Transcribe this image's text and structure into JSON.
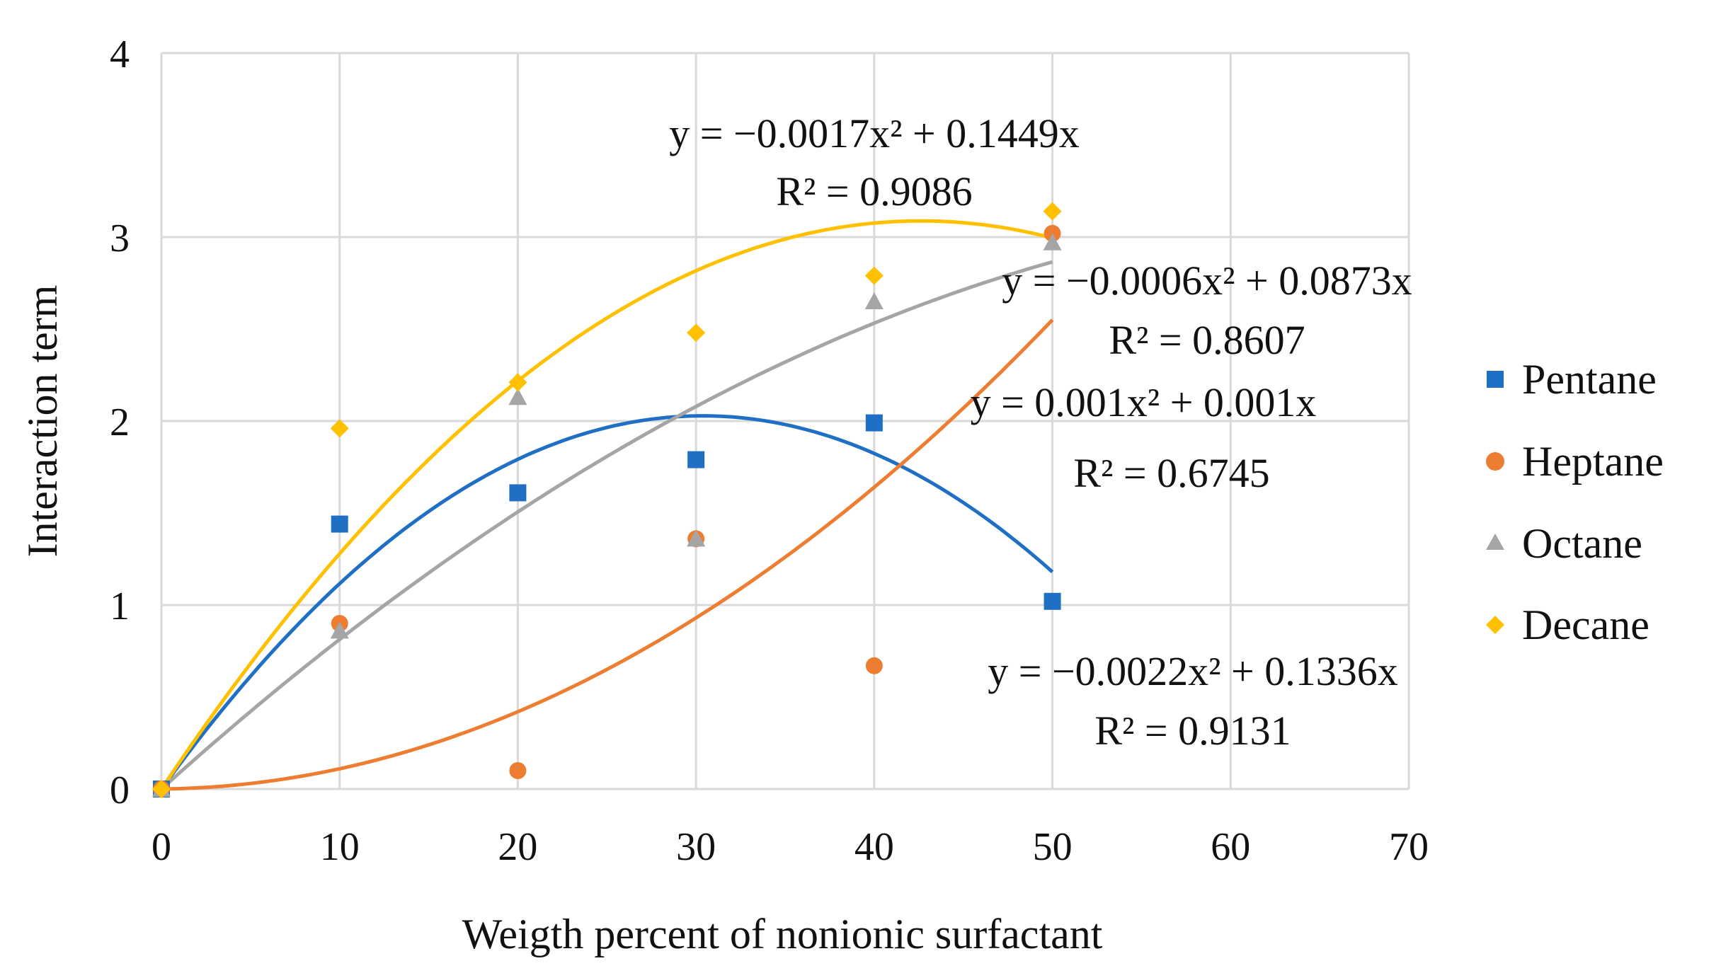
{
  "chart_data": {
    "type": "scatter",
    "title": "",
    "xlabel": "Weigth percent of nonionic surfactant",
    "ylabel": "Interaction term",
    "xlim": [
      0,
      70
    ],
    "ylim": [
      0,
      4
    ],
    "xticks": [
      0,
      10,
      20,
      30,
      40,
      50,
      60,
      70
    ],
    "yticks": [
      0,
      1,
      2,
      3,
      4
    ],
    "grid": true,
    "legend_position": "right",
    "series": [
      {
        "name": "Pentane",
        "marker": "square",
        "color": "#1f6fc5",
        "x": [
          0,
          10,
          20,
          30,
          40,
          50
        ],
        "y": [
          0.0,
          1.44,
          1.61,
          1.79,
          1.99,
          1.02
        ],
        "trend": {
          "a": -0.0022,
          "b": 0.1336,
          "equation": "y = −0.0022x² + 0.1336x",
          "r2": "R² = 0.9131"
        }
      },
      {
        "name": "Heptane",
        "marker": "circle",
        "color": "#ed7d31",
        "x": [
          0,
          10,
          20,
          30,
          40,
          50
        ],
        "y": [
          0.0,
          0.9,
          0.1,
          1.36,
          0.67,
          3.02
        ],
        "trend": {
          "a": 0.001,
          "b": 0.001,
          "equation": "y = 0.001x² + 0.001x",
          "r2": "R² = 0.6745"
        }
      },
      {
        "name": "Octane",
        "marker": "triangle",
        "color": "#a5a5a5",
        "x": [
          0,
          10,
          20,
          30,
          40,
          50
        ],
        "y": [
          0.0,
          0.86,
          2.13,
          1.36,
          2.65,
          2.97
        ],
        "trend": {
          "a": -0.0006,
          "b": 0.0873,
          "equation": "y = −0.0006x² + 0.0873x",
          "r2": "R² = 0.8607"
        }
      },
      {
        "name": "Decane",
        "marker": "diamond",
        "color": "#ffc000",
        "x": [
          0,
          10,
          20,
          30,
          40,
          50
        ],
        "y": [
          0.0,
          1.96,
          2.21,
          2.48,
          2.79,
          3.14
        ],
        "trend": {
          "a": -0.0017,
          "b": 0.1449,
          "equation": "y = −0.0017x² + 0.1449x",
          "r2": "R² = 0.9086"
        }
      }
    ]
  }
}
